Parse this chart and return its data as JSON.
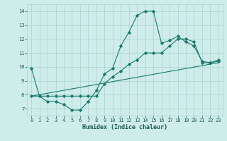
{
  "xlabel": "Humidex (Indice chaleur)",
  "ylabel": "",
  "bg_color": "#ceecea",
  "grid_color": "#aad4d0",
  "line_color": "#1a7a6e",
  "xlim": [
    -0.5,
    23.5
  ],
  "ylim": [
    6.5,
    14.5
  ],
  "yticks": [
    7,
    8,
    9,
    10,
    11,
    12,
    13,
    14
  ],
  "xticks": [
    0,
    1,
    2,
    3,
    4,
    5,
    6,
    7,
    8,
    9,
    10,
    11,
    12,
    13,
    14,
    15,
    16,
    17,
    18,
    19,
    20,
    21,
    22,
    23
  ],
  "series1_x": [
    0,
    1,
    2,
    3,
    4,
    5,
    6,
    7,
    8,
    9,
    10,
    11,
    12,
    13,
    14,
    15,
    16,
    17,
    18,
    19,
    20,
    21,
    22,
    23
  ],
  "series1_y": [
    9.9,
    7.9,
    7.5,
    7.5,
    7.3,
    6.9,
    6.9,
    7.5,
    8.3,
    9.5,
    9.9,
    11.5,
    12.5,
    13.7,
    14.0,
    14.0,
    11.7,
    11.9,
    12.2,
    11.8,
    11.5,
    10.4,
    10.3,
    10.5
  ],
  "series2_x": [
    0,
    1,
    2,
    3,
    4,
    5,
    6,
    7,
    8,
    9,
    10,
    11,
    12,
    13,
    14,
    15,
    16,
    17,
    18,
    19,
    20,
    21,
    22,
    23
  ],
  "series2_y": [
    7.9,
    7.9,
    7.9,
    7.9,
    7.9,
    7.9,
    7.9,
    7.9,
    7.9,
    8.8,
    9.3,
    9.7,
    10.2,
    10.5,
    11.0,
    11.0,
    11.0,
    11.5,
    12.0,
    12.0,
    11.8,
    10.3,
    10.3,
    10.4
  ],
  "series3_x": [
    0,
    23
  ],
  "series3_y": [
    7.9,
    10.3
  ]
}
